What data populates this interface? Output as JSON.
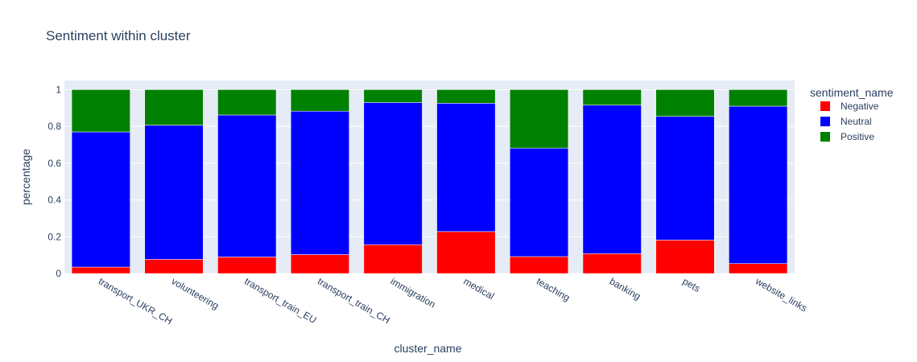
{
  "chart_data": {
    "type": "bar",
    "barmode": "stack",
    "title": "Sentiment within cluster",
    "xlabel": "cluster_name",
    "ylabel": "percentage",
    "ylim": [
      0,
      1.05
    ],
    "yticks": [
      0,
      0.2,
      0.4,
      0.6,
      0.8,
      1
    ],
    "ytick_labels": [
      "0",
      "0.2",
      "0.4",
      "0.6",
      "0.8",
      "1"
    ],
    "grid": true,
    "legend_title": "sentiment_name",
    "legend_position": "right",
    "categories": [
      "transport_UKR_CH",
      "volunteering",
      "transport_train_EU",
      "transport_train_CH",
      "immigration",
      "medical",
      "teaching",
      "banking",
      "pets",
      "website_links"
    ],
    "series": [
      {
        "name": "Negative",
        "color": "#ff0000",
        "values": [
          0.035,
          0.077,
          0.09,
          0.103,
          0.157,
          0.228,
          0.092,
          0.108,
          0.182,
          0.054
        ]
      },
      {
        "name": "Neutral",
        "color": "#0000ff",
        "values": [
          0.735,
          0.73,
          0.772,
          0.78,
          0.773,
          0.698,
          0.59,
          0.808,
          0.673,
          0.856
        ]
      },
      {
        "name": "Positive",
        "color": "#008000",
        "values": [
          0.23,
          0.193,
          0.138,
          0.117,
          0.07,
          0.074,
          0.318,
          0.084,
          0.145,
          0.09
        ]
      }
    ]
  },
  "colors": {
    "plot_background": "#e5ecf6",
    "gridline": "#ffffff",
    "text": "#2a3f5f"
  }
}
